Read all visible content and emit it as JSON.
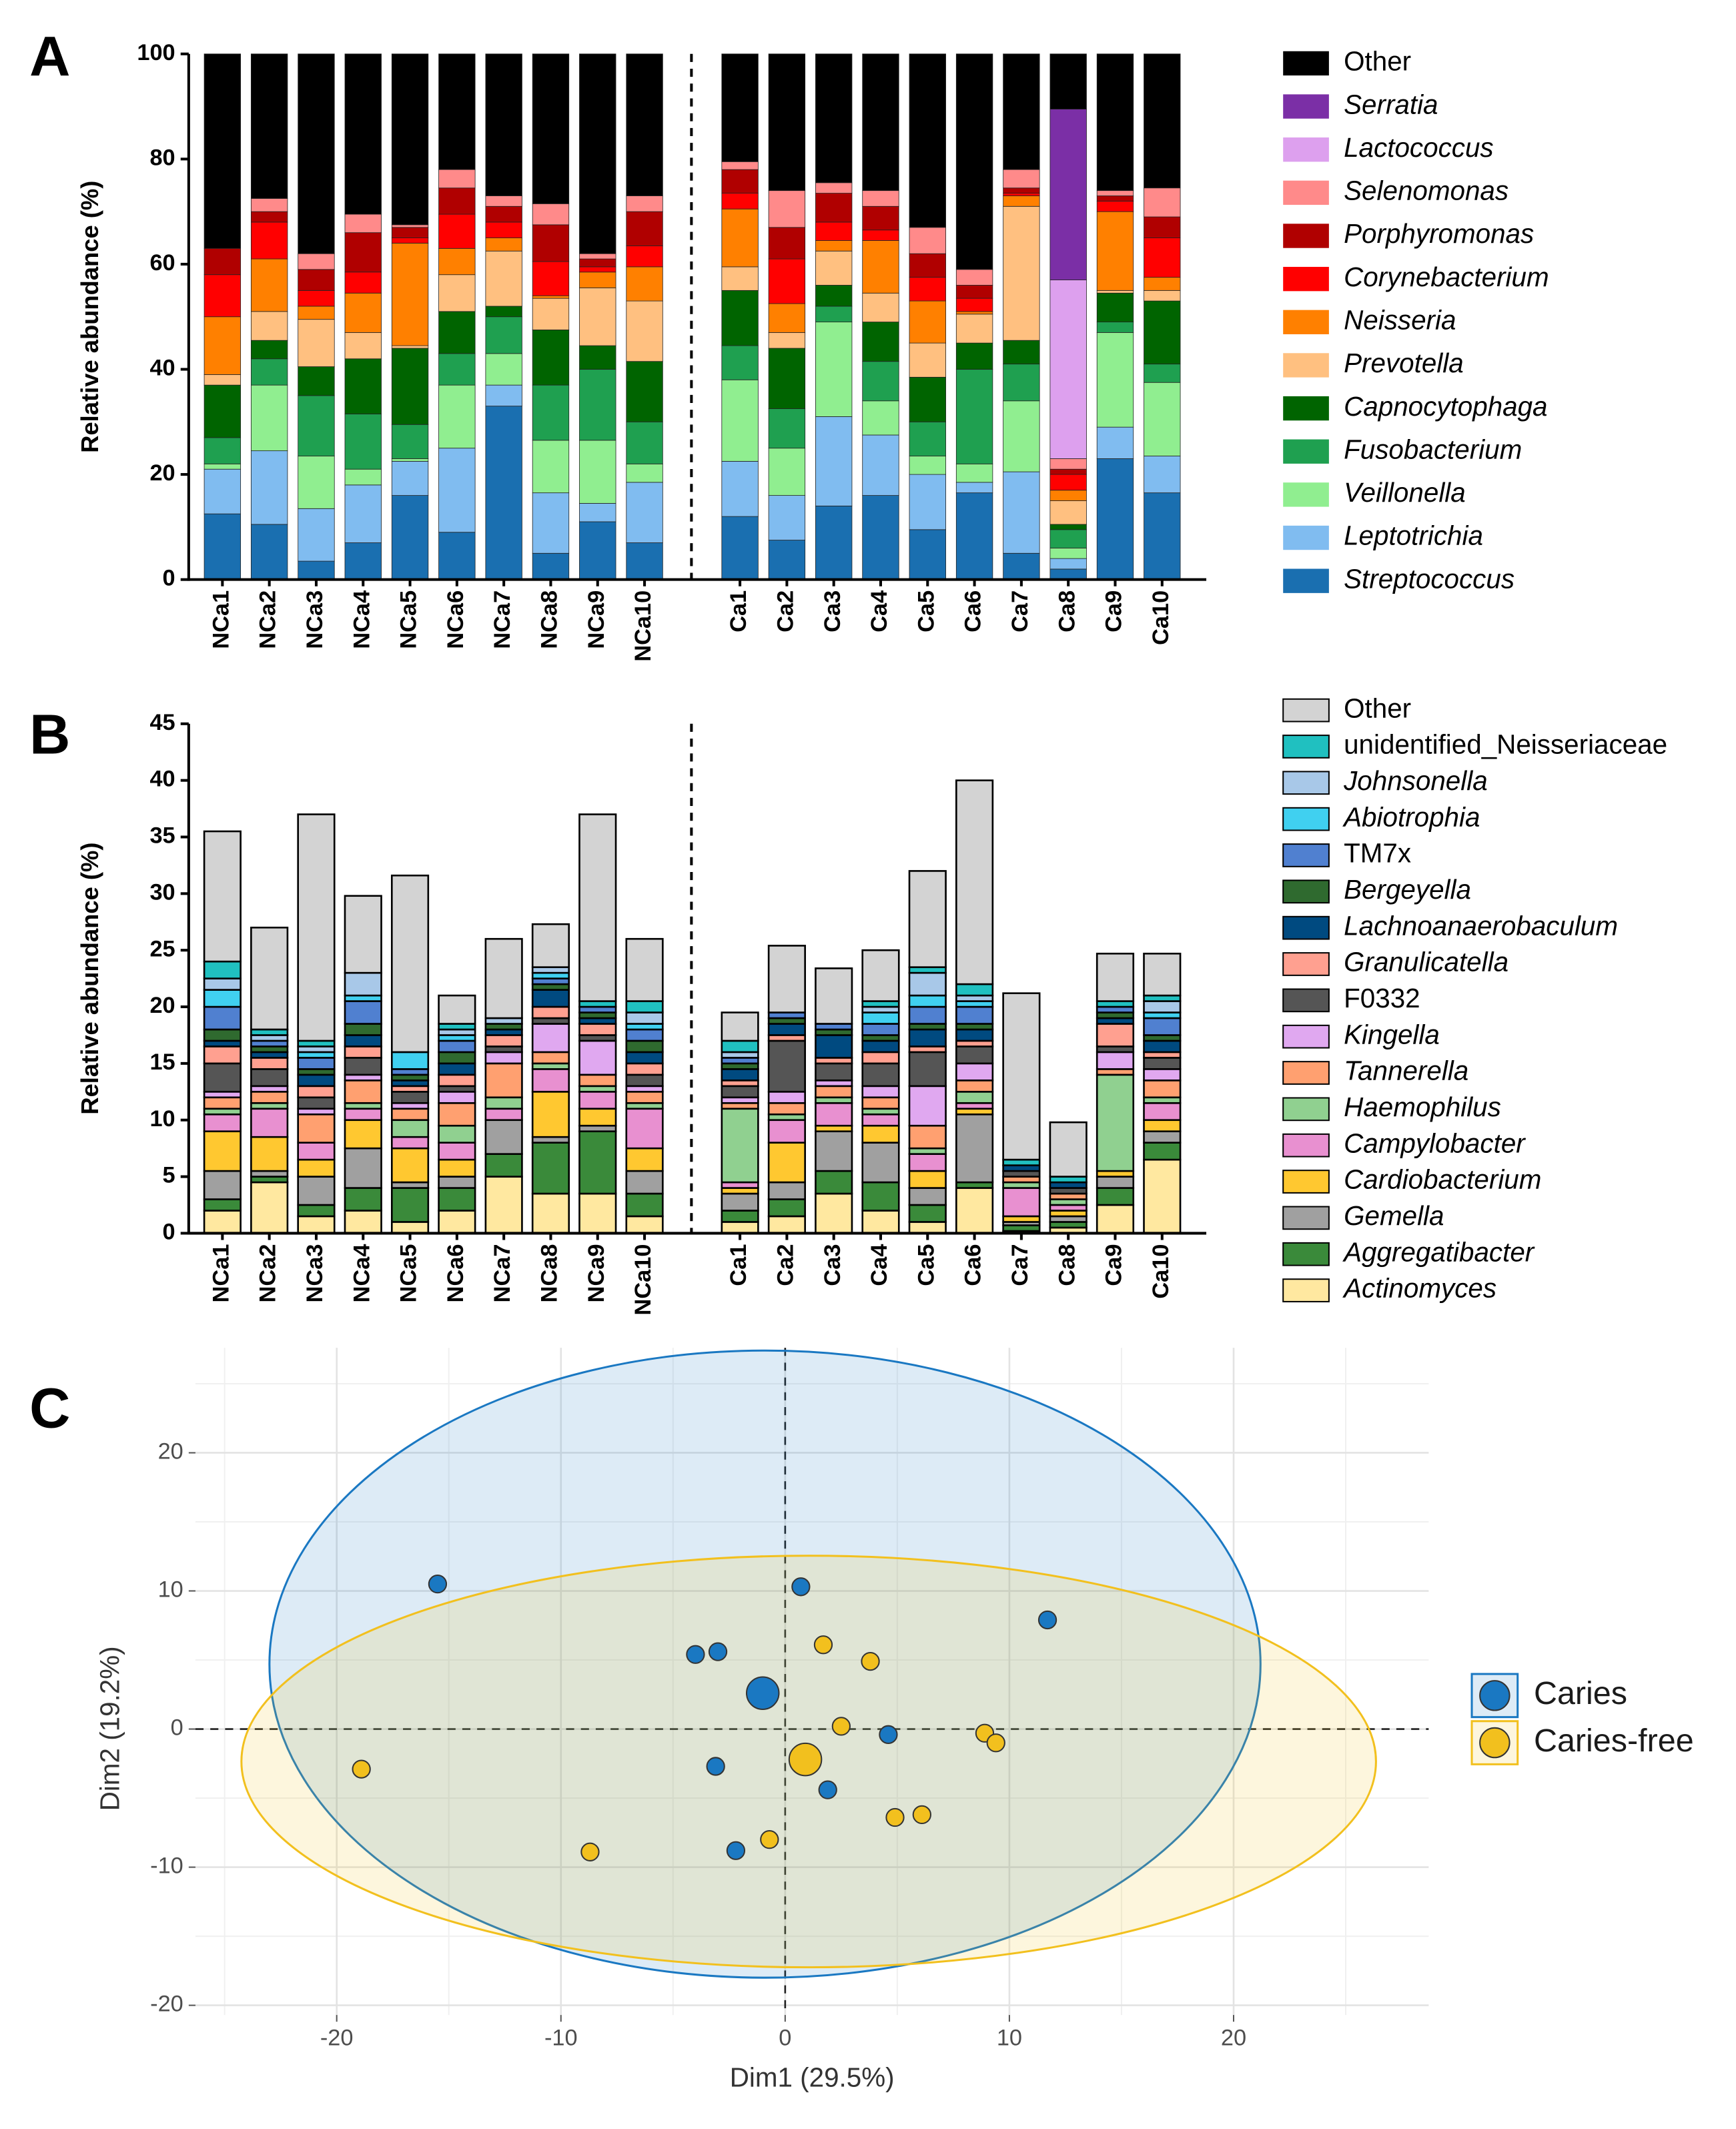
{
  "chart_data": [
    {
      "type": "bar",
      "panel": "A",
      "stacked": true,
      "bar_outline": false,
      "y_label": "Relative abundance (%)",
      "ylim": [
        0,
        100
      ],
      "yticks": [
        0,
        20,
        40,
        60,
        80,
        100
      ],
      "categories": [
        "NCa1",
        "NCa2",
        "NCa3",
        "NCa4",
        "NCa5",
        "NCa6",
        "NCa7",
        "NCa8",
        "NCa9",
        "NCa10",
        "Ca1",
        "Ca2",
        "Ca3",
        "Ca4",
        "Ca5",
        "Ca6",
        "Ca7",
        "Ca8",
        "Ca9",
        "Ca10"
      ],
      "series": [
        {
          "name": "Streptococcus",
          "italic": true,
          "color": "#1a6fb0",
          "values": [
            12.5,
            10.5,
            3.5,
            7,
            16,
            9,
            33,
            5,
            11,
            7,
            12,
            7.5,
            14,
            16,
            9.5,
            16.5,
            5,
            2,
            23,
            16.5
          ]
        },
        {
          "name": "Leptotrichia",
          "italic": true,
          "color": "#80bcf0",
          "values": [
            8.5,
            14,
            10,
            11,
            6.5,
            16,
            4,
            11.5,
            3.5,
            11.5,
            10.5,
            8.5,
            17,
            11.5,
            10.5,
            2,
            15.5,
            2,
            6,
            7
          ]
        },
        {
          "name": "Veillonella",
          "italic": true,
          "color": "#90ee90",
          "values": [
            1,
            12.5,
            10,
            3,
            0.5,
            12,
            6,
            10,
            12,
            3.5,
            15.5,
            9,
            18,
            6.5,
            3.5,
            3.5,
            13.5,
            2,
            18,
            14
          ]
        },
        {
          "name": "Fusobacterium",
          "italic": true,
          "color": "#1fa050",
          "values": [
            5,
            5,
            11.5,
            10.5,
            6.5,
            6,
            7,
            10.5,
            13.5,
            8,
            6.5,
            7.5,
            3,
            7.5,
            6.5,
            18,
            7,
            3.5,
            2,
            3.5
          ]
        },
        {
          "name": "Capnocytophaga",
          "italic": true,
          "color": "#006400",
          "values": [
            10,
            3.5,
            5.5,
            10.5,
            14.5,
            8,
            2,
            10.5,
            4.5,
            11.5,
            10.5,
            11.5,
            4,
            7.5,
            8.5,
            5,
            4.5,
            1,
            5.5,
            12
          ]
        },
        {
          "name": "Prevotella",
          "italic": true,
          "color": "#ffc080",
          "values": [
            2,
            5.5,
            9,
            5,
            0.5,
            7,
            10.5,
            6,
            11,
            11.5,
            4.5,
            3,
            6.5,
            5.5,
            6.5,
            5.5,
            25.5,
            4.5,
            0.5,
            2
          ]
        },
        {
          "name": "Neisseria",
          "italic": true,
          "color": "#ff8000",
          "values": [
            11,
            10,
            2.5,
            7.5,
            19.5,
            5,
            2.5,
            0.5,
            3,
            6.5,
            11,
            5.5,
            2,
            10,
            8,
            0.5,
            2,
            2,
            15,
            2.5
          ]
        },
        {
          "name": "Corynebacterium",
          "italic": true,
          "color": "#ff0000",
          "values": [
            8,
            7,
            3,
            4,
            1,
            6.5,
            3,
            6.5,
            1,
            4,
            3,
            8.5,
            3.5,
            2,
            4.5,
            2.5,
            0.5,
            3,
            2,
            7.5
          ]
        },
        {
          "name": "Porphyromonas",
          "italic": true,
          "color": "#b00000",
          "values": [
            5,
            2,
            4,
            7.5,
            2,
            5,
            3,
            7,
            1.5,
            6.5,
            4.5,
            6,
            5.5,
            4.5,
            4.5,
            2.5,
            1,
            1,
            1,
            4
          ]
        },
        {
          "name": "Selenomonas",
          "italic": true,
          "color": "#ff8a8a",
          "values": [
            0,
            2.5,
            3,
            3.5,
            0.5,
            3.5,
            2,
            4,
            1,
            3,
            1.5,
            7,
            2,
            3,
            5,
            3,
            3.5,
            2,
            1,
            5.5
          ]
        },
        {
          "name": "Lactococcus",
          "italic": true,
          "color": "#dda0ee",
          "values": [
            0,
            0,
            0,
            0,
            0,
            0,
            0,
            0,
            0,
            0,
            0,
            0,
            0,
            0,
            0,
            0,
            0,
            34,
            0,
            0
          ]
        },
        {
          "name": "Serratia",
          "italic": true,
          "color": "#7b2fa6",
          "values": [
            0,
            0,
            0,
            0,
            0,
            0,
            0,
            0,
            0,
            0,
            0,
            0,
            0,
            0,
            0,
            0,
            0,
            32.5,
            0,
            0
          ]
        },
        {
          "name": "Other",
          "italic": false,
          "color": "#000000",
          "values": [
            37,
            27.5,
            38,
            30.5,
            32.5,
            22,
            27,
            28.5,
            38,
            27,
            20.5,
            26,
            24.5,
            26,
            33,
            41,
            22,
            10.5,
            26,
            25.5
          ]
        }
      ]
    },
    {
      "type": "bar",
      "panel": "B",
      "stacked": true,
      "bar_outline": true,
      "y_label": "Relative abundance (%)",
      "ylim": [
        0,
        45
      ],
      "yticks": [
        0,
        5,
        10,
        15,
        20,
        25,
        30,
        35,
        40,
        45
      ],
      "categories": [
        "NCa1",
        "NCa2",
        "NCa3",
        "NCa4",
        "NCa5",
        "NCa6",
        "NCa7",
        "NCa8",
        "NCa9",
        "NCa10",
        "Ca1",
        "Ca2",
        "Ca3",
        "Ca4",
        "Ca5",
        "Ca6",
        "Ca7",
        "Ca8",
        "Ca9",
        "Ca10"
      ],
      "series": [
        {
          "name": "Actinomyces",
          "italic": true,
          "color": "#ffe8a0",
          "values": [
            2,
            4.5,
            1.5,
            2,
            1,
            2,
            5,
            3.5,
            3.5,
            1.5,
            1,
            1.5,
            3.5,
            2,
            1,
            4,
            0.2,
            0.5,
            2.5,
            6.5
          ]
        },
        {
          "name": "Aggregatibacter",
          "italic": true,
          "color": "#3a8a3a",
          "values": [
            1,
            0.5,
            1,
            2,
            3,
            2,
            2,
            4.5,
            5.5,
            2,
            1,
            1.5,
            2,
            2.5,
            1.5,
            0.5,
            0.5,
            0.5,
            1.5,
            1.5
          ]
        },
        {
          "name": "Gemella",
          "italic": true,
          "color": "#a0a0a0",
          "values": [
            2.5,
            0.5,
            2.5,
            3.5,
            0.5,
            1,
            3,
            0.5,
            0.5,
            2,
            1.5,
            1.5,
            3.5,
            3.5,
            1.5,
            6,
            0.3,
            0.5,
            1,
            1
          ]
        },
        {
          "name": "Cardiobacterium",
          "italic": true,
          "color": "#ffc830",
          "values": [
            3.5,
            3,
            1.5,
            2.5,
            3,
            1.5,
            0,
            4,
            1.5,
            2,
            0.5,
            3.5,
            0.5,
            1.5,
            1.5,
            0.5,
            0.5,
            0.5,
            0.5,
            1
          ]
        },
        {
          "name": "Campylobacter",
          "italic": true,
          "color": "#e890d0",
          "values": [
            1.5,
            2.5,
            1.5,
            1,
            1,
            1.5,
            1,
            2,
            1.5,
            3.5,
            0.5,
            2,
            2,
            1,
            1.5,
            0.5,
            2.5,
            0.5,
            0,
            1.5
          ]
        },
        {
          "name": "Haemophilus",
          "italic": true,
          "color": "#90d090",
          "values": [
            0.5,
            0.5,
            0,
            0.5,
            1.5,
            1.5,
            1,
            0.5,
            0.5,
            0.5,
            6.5,
            0.5,
            0.5,
            0.5,
            0.5,
            1,
            0.5,
            0.5,
            8.5,
            0.5
          ]
        },
        {
          "name": "Tannerella",
          "italic": true,
          "color": "#ffa070",
          "values": [
            1,
            1,
            2.5,
            2,
            1,
            2,
            3,
            1,
            1,
            1,
            0.5,
            1,
            1,
            1,
            2,
            1,
            0.5,
            0.5,
            0.5,
            1.5
          ]
        },
        {
          "name": "Kingella",
          "italic": true,
          "color": "#e0a8f0",
          "values": [
            0.5,
            0.5,
            0.5,
            0.5,
            0.5,
            1,
            1,
            2.5,
            3,
            0.5,
            0.5,
            1,
            0.5,
            1,
            3.5,
            1.5,
            0,
            0,
            1.5,
            1
          ]
        },
        {
          "name": "F0332",
          "italic": false,
          "color": "#555555",
          "values": [
            2.5,
            1.5,
            1,
            1.5,
            1,
            0.5,
            0.5,
            0.5,
            0.5,
            1,
            1,
            4.5,
            1.5,
            2,
            3,
            1.5,
            0.5,
            0.5,
            0.5,
            1
          ]
        },
        {
          "name": "Granulicatella",
          "italic": true,
          "color": "#ffa090",
          "values": [
            1.5,
            1,
            1,
            1,
            0.5,
            1,
            1,
            1,
            1,
            1,
            0.5,
            0.5,
            0.5,
            1,
            0.5,
            0.5,
            0,
            0,
            2,
            0.5
          ]
        },
        {
          "name": "Lachnoanaerobaculum",
          "italic": true,
          "color": "#004a80",
          "values": [
            0.5,
            0.5,
            1,
            1,
            0.5,
            1,
            0.5,
            1.5,
            0.5,
            1,
            1,
            1,
            2,
            1,
            1.5,
            1,
            0.5,
            0.5,
            0.5,
            1
          ]
        },
        {
          "name": "Bergeyella",
          "italic": true,
          "color": "#2f6a2f",
          "values": [
            1,
            0.5,
            0.5,
            1,
            0.5,
            1,
            0.5,
            0.5,
            0.5,
            1,
            0.5,
            0.5,
            0.5,
            0.5,
            0.5,
            0.5,
            0,
            0,
            0.5,
            0.5
          ]
        },
        {
          "name": "TM7x",
          "italic": false,
          "color": "#5080d0",
          "values": [
            2,
            0.5,
            1,
            2,
            0.5,
            1,
            0,
            0.5,
            0.5,
            1,
            0.5,
            0.5,
            0.5,
            1,
            1.5,
            1.5,
            0,
            0,
            0.5,
            1.5
          ]
        },
        {
          "name": "Abiotrophia",
          "italic": true,
          "color": "#40d0f0",
          "values": [
            1.5,
            0,
            0.5,
            0.5,
            1.5,
            0.5,
            0,
            0.5,
            0,
            0.5,
            0,
            0,
            0,
            1,
            1,
            0.5,
            0,
            0,
            0,
            0.5
          ]
        },
        {
          "name": "Johnsonella",
          "italic": true,
          "color": "#a8c8e8",
          "values": [
            1,
            0.5,
            0.5,
            2,
            0,
            0.5,
            0.5,
            0.5,
            0,
            1,
            0.5,
            0,
            0,
            0.5,
            2,
            0.5,
            0,
            0,
            0,
            1
          ]
        },
        {
          "name": "unidentified_Neisseriaceae",
          "italic": false,
          "color": "#20c0c0",
          "values": [
            1.5,
            0.5,
            0.5,
            0,
            0,
            0.5,
            0,
            0,
            0.5,
            1,
            1,
            0,
            0,
            0.5,
            0.5,
            1,
            0.5,
            0.5,
            0.5,
            0.5
          ]
        },
        {
          "name": "Other",
          "italic": false,
          "color": "#d3d3d3",
          "values": [
            11.5,
            9,
            20,
            6.8,
            15.6,
            2.5,
            7,
            3.8,
            16.5,
            5.5,
            2.5,
            5.9,
            4.9,
            4.5,
            8.5,
            18,
            14.7,
            4.8,
            4.2,
            3.7
          ]
        }
      ]
    },
    {
      "type": "scatter",
      "panel": "C",
      "x_label": "Dim1 (29.5%)",
      "y_label": "Dim2 (19.2%)",
      "xlim": [
        -26.3,
        28.7
      ],
      "xticks": [
        -20,
        -10,
        0,
        10,
        20
      ],
      "ylim": [
        -20.7,
        27.6
      ],
      "yticks": [
        -20,
        -10,
        0,
        10,
        20
      ],
      "grid": true,
      "minor_grid": true,
      "series": [
        {
          "name": "Caries",
          "color": "#1a78c2",
          "x": [
            -15.5,
            0.7,
            11.7,
            -4,
            -3,
            -3.1,
            1.9,
            4.6,
            -2.2
          ],
          "values": [
            10.5,
            10.3,
            7.9,
            5.4,
            5.6,
            -2.7,
            -4.4,
            -0.4,
            -8.8
          ],
          "centroid": {
            "x": -1,
            "y": 2.6
          },
          "ellipse": {
            "cx": -0.9,
            "cy": 4.7,
            "rx": 22.1,
            "ry": 22.7
          }
        },
        {
          "name": "Caries-free",
          "color": "#f2c01e",
          "x": [
            -18.9,
            -8.7,
            1.7,
            3.8,
            2.5,
            8.9,
            9.4,
            4.9,
            6.1,
            -0.7
          ],
          "values": [
            -2.9,
            -8.9,
            6.1,
            4.9,
            0.2,
            -0.3,
            -1,
            -6.4,
            -6.2,
            -8
          ],
          "centroid": {
            "x": 0.9,
            "y": -2.2
          },
          "ellipse": {
            "cx": 1.05,
            "cy": -2.35,
            "rx": 25.3,
            "ry": 14.9
          }
        }
      ]
    }
  ]
}
